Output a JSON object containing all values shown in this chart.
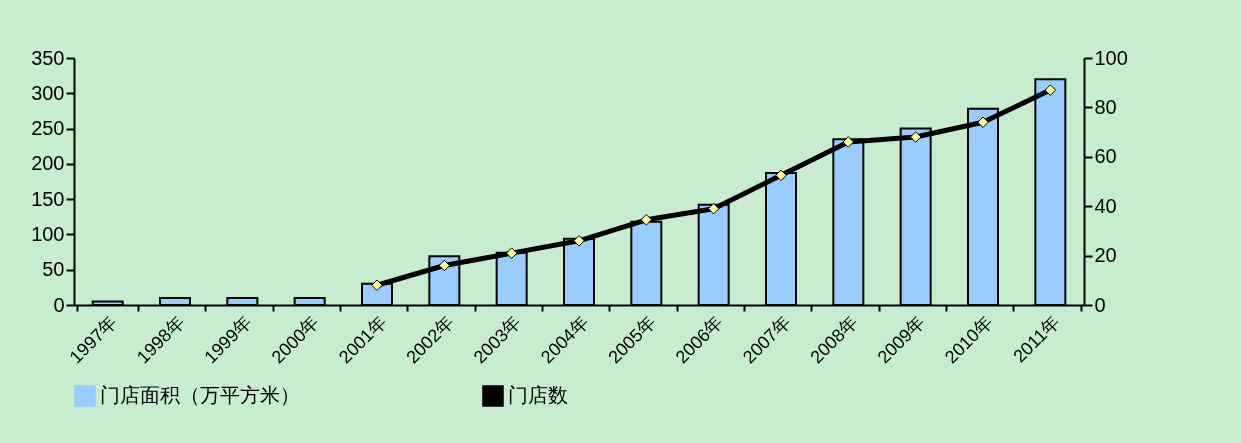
{
  "chart_data": {
    "type": "bar",
    "categories": [
      "1997年",
      "1998年",
      "1999年",
      "2000年",
      "2001年",
      "2002年",
      "2003年",
      "2004年",
      "2005年",
      "2006年",
      "2007年",
      "2008年",
      "2009年",
      "2010年",
      "2011年"
    ],
    "series": [
      {
        "name": "门店面积（万平方米）",
        "color": "#99ccff",
        "values": [
          5,
          10,
          10,
          10,
          30,
          69,
          74,
          94,
          118,
          142,
          187,
          235,
          250,
          278,
          320
        ]
      },
      {
        "name": "门店数",
        "color": "#000000",
        "type": "line",
        "axis": "y2",
        "values": [
          null,
          null,
          null,
          null,
          8,
          16,
          21,
          26,
          34.5,
          39,
          52.5,
          66,
          68,
          74,
          87
        ]
      }
    ],
    "ylim": [
      0,
      350
    ],
    "yticks": [
      0,
      50,
      100,
      150,
      200,
      250,
      300,
      350
    ],
    "y2lim": [
      0,
      100
    ],
    "y2ticks": [
      0,
      20,
      40,
      60,
      80,
      100
    ],
    "legend": "bottom",
    "marker": "diamond",
    "grid": false
  }
}
